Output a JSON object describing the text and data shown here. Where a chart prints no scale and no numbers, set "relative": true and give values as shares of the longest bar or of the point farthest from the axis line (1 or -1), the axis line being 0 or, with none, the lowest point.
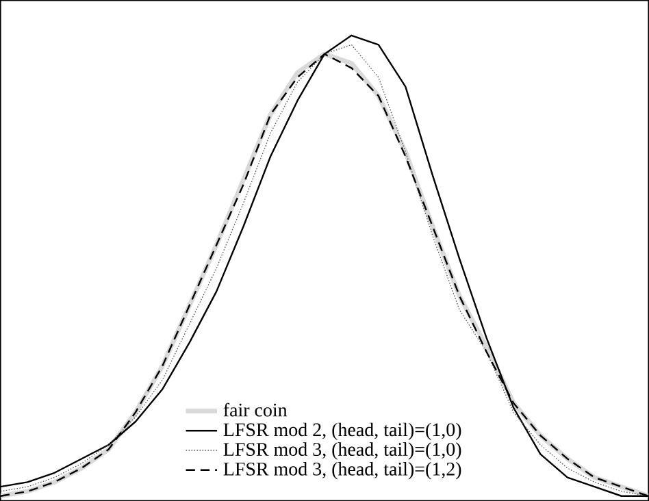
{
  "chart_data": {
    "type": "line",
    "relative": true,
    "legend": "bottom",
    "categories": [
      null,
      null,
      null,
      null,
      null,
      null,
      null,
      null,
      null,
      null,
      null,
      null,
      null,
      null,
      null,
      null,
      null,
      null,
      null,
      null,
      null,
      null,
      null,
      null,
      null
    ],
    "series": [
      {
        "name": "fair coin",
        "color": "#d9d9d9",
        "line_style": "solid",
        "values": [
          0.01,
          0.02,
          0.04,
          0.07,
          0.11,
          0.19,
          0.29,
          0.42,
          0.55,
          0.69,
          0.83,
          0.92,
          0.96,
          0.94,
          0.87,
          0.75,
          0.59,
          0.44,
          0.33,
          0.21,
          0.14,
          0.09,
          0.05,
          0.03,
          0.01
        ]
      },
      {
        "name": "LFSR mod 2, (head, tail)=(1,0)",
        "color": "#000000",
        "line_style": "solid",
        "values": [
          0.03,
          0.04,
          0.06,
          0.09,
          0.12,
          0.17,
          0.24,
          0.34,
          0.45,
          0.59,
          0.74,
          0.86,
          0.96,
          1.0,
          0.98,
          0.89,
          0.7,
          0.52,
          0.35,
          0.2,
          0.1,
          0.05,
          0.03,
          0.01,
          0.01
        ]
      },
      {
        "name": "LFSR mod 3, (head, tail)=(1,0)",
        "color": "#555555",
        "line_style": "dotted",
        "values": [
          0.02,
          0.03,
          0.05,
          0.08,
          0.12,
          0.18,
          0.26,
          0.38,
          0.5,
          0.64,
          0.79,
          0.9,
          0.96,
          0.98,
          0.91,
          0.75,
          0.57,
          0.41,
          0.32,
          0.19,
          0.12,
          0.07,
          0.04,
          0.02,
          0.01
        ]
      },
      {
        "name": "LFSR mod 3, (head, tail)=(1,2)",
        "color": "#000000",
        "line_style": "dashed",
        "values": [
          0.01,
          0.02,
          0.04,
          0.07,
          0.11,
          0.19,
          0.29,
          0.42,
          0.55,
          0.68,
          0.83,
          0.91,
          0.96,
          0.93,
          0.87,
          0.74,
          0.59,
          0.44,
          0.32,
          0.21,
          0.14,
          0.09,
          0.05,
          0.03,
          0.01
        ]
      }
    ]
  }
}
